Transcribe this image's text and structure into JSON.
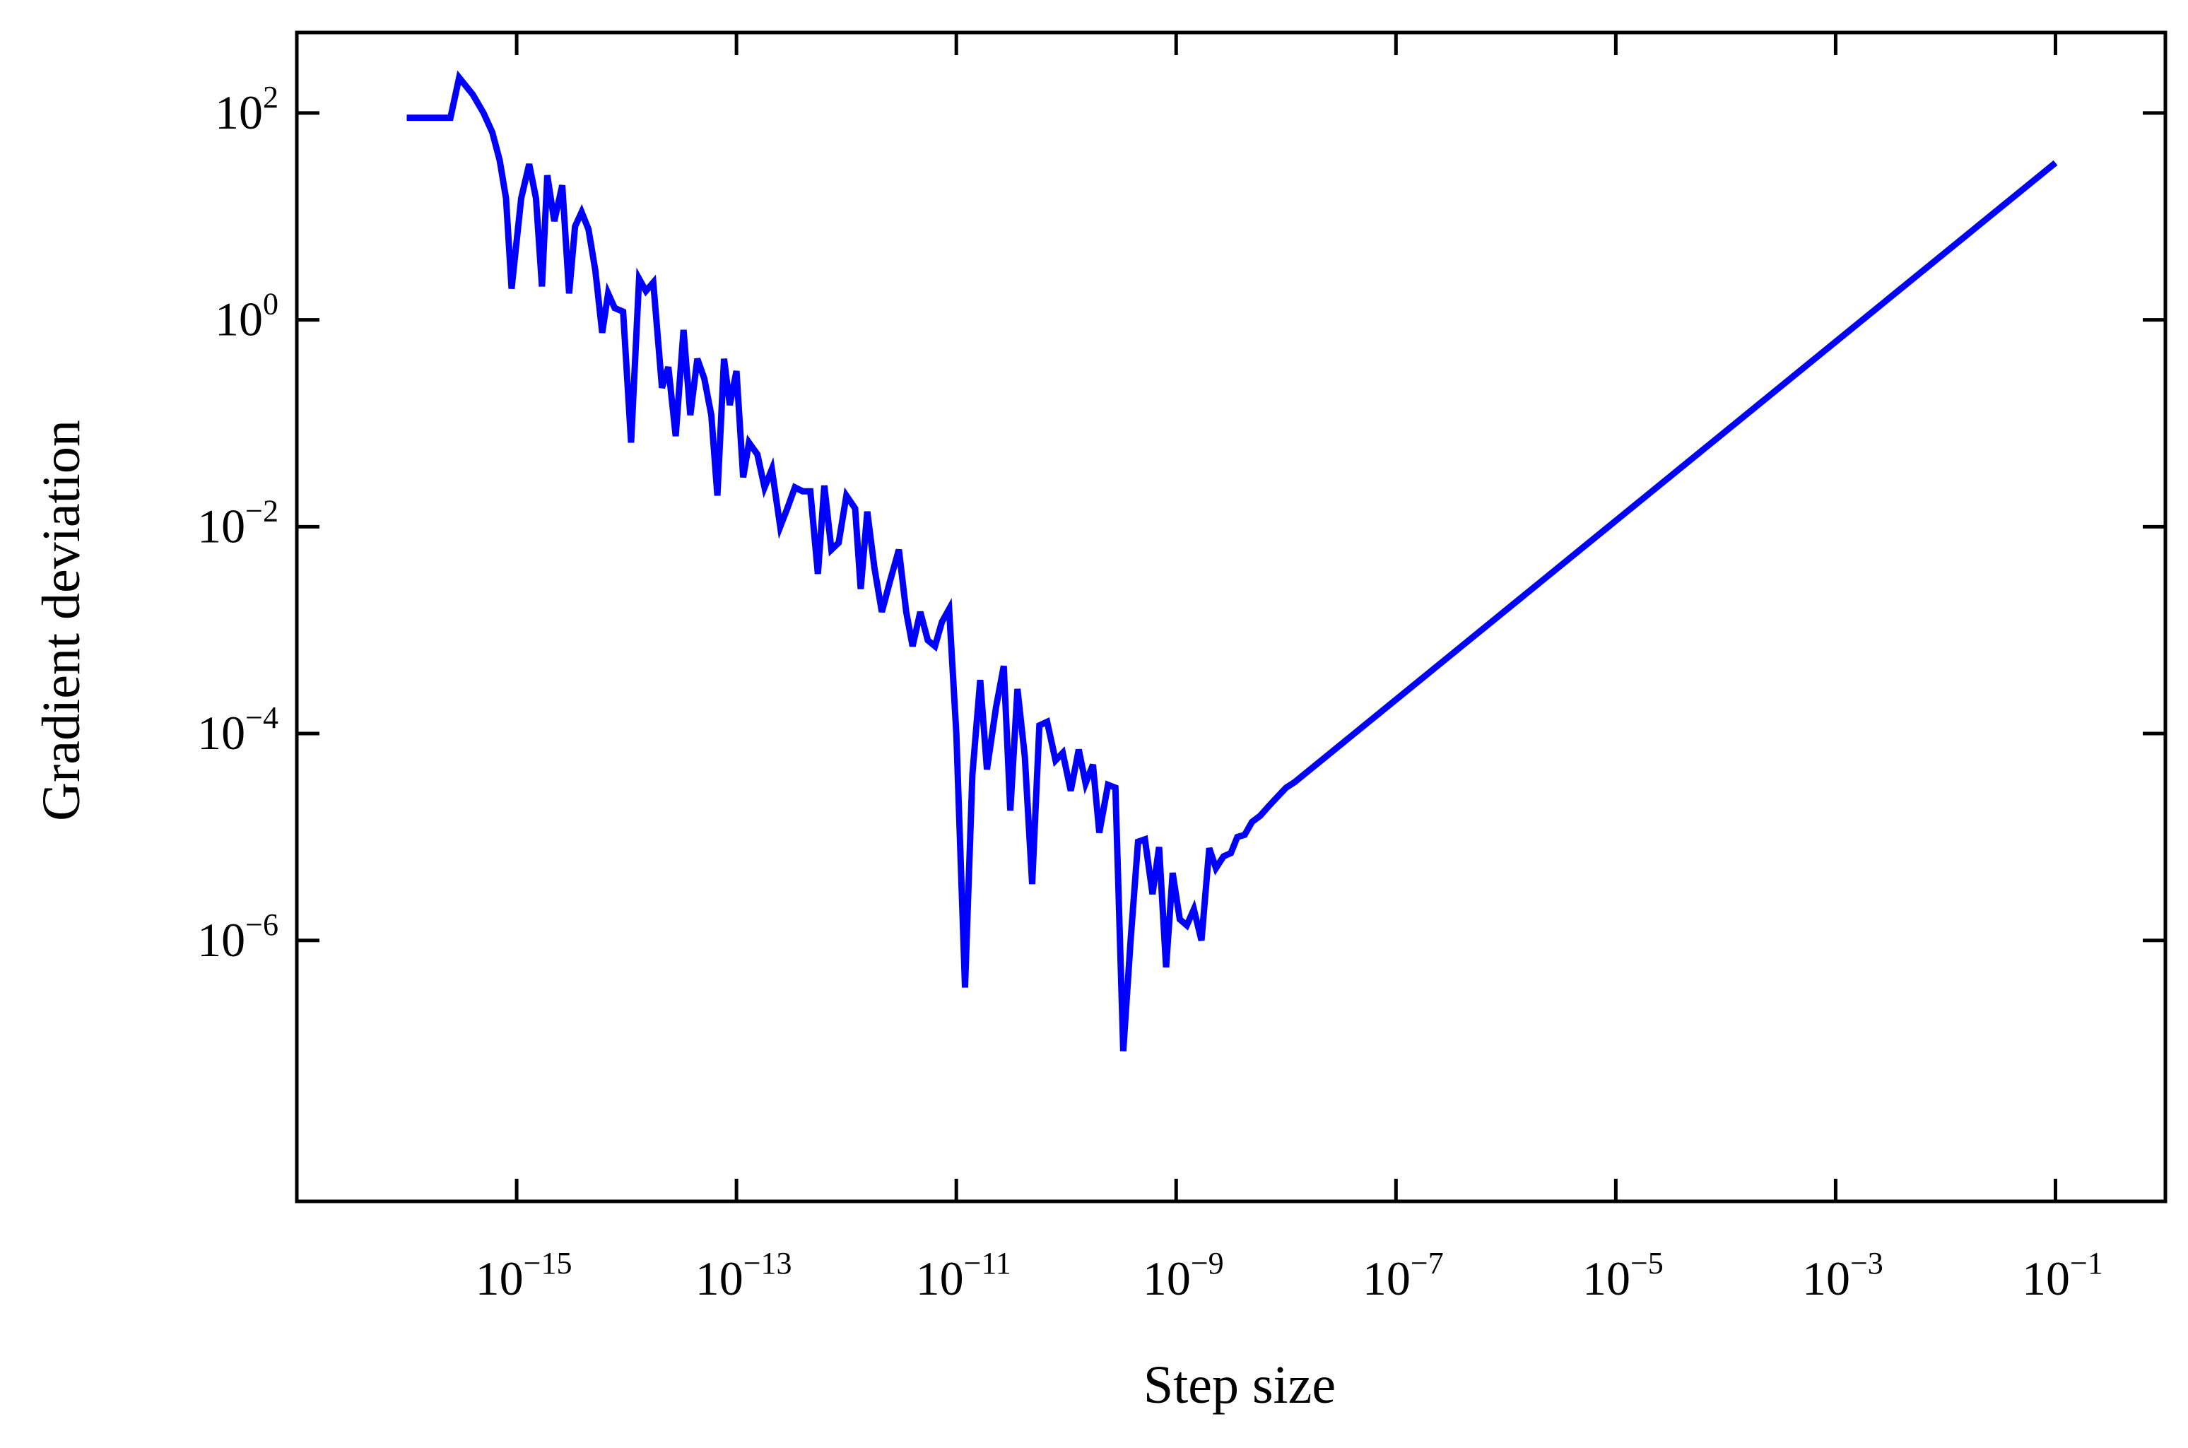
{
  "chart_data": {
    "type": "line",
    "title": "",
    "xlabel": "Step size",
    "ylabel": "Gradient deviation",
    "x_scale": "log",
    "y_scale": "log",
    "xlim": [
      1e-17,
      1
    ],
    "ylim": [
      3e-09,
      600
    ],
    "grid": false,
    "legend": "none",
    "x_ticks": [
      {
        "value": 1e-15,
        "base": "10",
        "exp": "−15"
      },
      {
        "value": 1e-13,
        "base": "10",
        "exp": "−13"
      },
      {
        "value": 1e-11,
        "base": "10",
        "exp": "−11"
      },
      {
        "value": 1e-09,
        "base": "10",
        "exp": "−9"
      },
      {
        "value": 1e-07,
        "base": "10",
        "exp": "−7"
      },
      {
        "value": 1e-05,
        "base": "10",
        "exp": "−5"
      },
      {
        "value": 0.001,
        "base": "10",
        "exp": "−3"
      },
      {
        "value": 0.1,
        "base": "10",
        "exp": "−1"
      }
    ],
    "y_ticks": [
      {
        "value": 100,
        "base": "10",
        "exp": "2"
      },
      {
        "value": 1,
        "base": "10",
        "exp": "0"
      },
      {
        "value": 0.01,
        "base": "10",
        "exp": "−2"
      },
      {
        "value": 0.0001,
        "base": "10",
        "exp": "−4"
      },
      {
        "value": 1e-06,
        "base": "10",
        "exp": "−6"
      }
    ],
    "series": [
      {
        "color": "#0000ff",
        "points": [
          [
            1e-16,
            90
          ],
          [
            2.5e-16,
            90
          ],
          [
            3e-16,
            220
          ],
          [
            4e-16,
            150
          ],
          [
            5e-16,
            100
          ],
          [
            6e-16,
            65
          ],
          [
            7e-16,
            35
          ],
          [
            8e-16,
            15
          ],
          [
            9e-16,
            2
          ],
          [
            1.1e-15,
            15
          ],
          [
            1.3e-15,
            32
          ],
          [
            1.5e-15,
            15
          ],
          [
            1.7e-15,
            2.1
          ],
          [
            1.9e-15,
            25
          ],
          [
            2.2e-15,
            9
          ],
          [
            2.6e-15,
            20
          ],
          [
            3e-15,
            1.8
          ],
          [
            3.4e-15,
            8
          ],
          [
            3.9e-15,
            11
          ],
          [
            4.5e-15,
            7.5
          ],
          [
            5.2e-15,
            3
          ],
          [
            6e-15,
            0.75
          ],
          [
            6.8e-15,
            1.8
          ],
          [
            7.8e-15,
            1.3
          ],
          [
            9.3e-15,
            1.2
          ],
          [
            1.1e-14,
            0.065
          ],
          [
            1.3e-14,
            2.5
          ],
          [
            1.5e-14,
            1.9
          ],
          [
            1.75e-14,
            2.3
          ],
          [
            2.1e-14,
            0.22
          ],
          [
            2.4e-14,
            0.35
          ],
          [
            2.8e-14,
            0.075
          ],
          [
            3.3e-14,
            0.8
          ],
          [
            3.8e-14,
            0.12
          ],
          [
            4.4e-14,
            0.42
          ],
          [
            5.1e-14,
            0.27
          ],
          [
            5.9e-14,
            0.12
          ],
          [
            6.7e-14,
            0.02
          ],
          [
            7.7e-14,
            0.42
          ],
          [
            8.7e-14,
            0.15
          ],
          [
            1e-13,
            0.32
          ],
          [
            1.15e-13,
            0.03
          ],
          [
            1.3e-13,
            0.065
          ],
          [
            1.55e-13,
            0.05
          ],
          [
            1.8e-13,
            0.024
          ],
          [
            2.1e-13,
            0.036
          ],
          [
            2.5e-13,
            0.01
          ],
          [
            2.9e-13,
            0.015
          ],
          [
            3.4e-13,
            0.024
          ],
          [
            4e-13,
            0.022
          ],
          [
            4.7e-13,
            0.022
          ],
          [
            5.5e-13,
            0.0035
          ],
          [
            6.3e-13,
            0.025
          ],
          [
            7.3e-13,
            0.006
          ],
          [
            8.5e-13,
            0.007
          ],
          [
            1e-12,
            0.02
          ],
          [
            1.2e-12,
            0.015
          ],
          [
            1.35e-12,
            0.0025
          ],
          [
            1.55e-12,
            0.014
          ],
          [
            1.8e-12,
            0.004
          ],
          [
            2.1e-12,
            0.0015
          ],
          [
            2.5e-12,
            0.003
          ],
          [
            3e-12,
            0.006
          ],
          [
            3.5e-12,
            0.0015
          ],
          [
            4e-12,
            0.0007
          ],
          [
            4.7e-12,
            0.0015
          ],
          [
            5.5e-12,
            0.0008
          ],
          [
            6.4e-12,
            0.0007
          ],
          [
            7.4e-12,
            0.0012
          ],
          [
            8.6e-12,
            0.0016
          ],
          [
            1e-11,
            0.0001
          ],
          [
            1.2e-11,
            3.5e-07
          ],
          [
            1.4e-11,
            4e-05
          ],
          [
            1.65e-11,
            0.00033
          ],
          [
            1.9e-11,
            4.5e-05
          ],
          [
            2.3e-11,
            0.00018
          ],
          [
            2.7e-11,
            0.00045
          ],
          [
            3.1e-11,
            1.8e-05
          ],
          [
            3.6e-11,
            0.00027
          ],
          [
            4.2e-11,
            6e-05
          ],
          [
            4.9e-11,
            3.5e-06
          ],
          [
            5.7e-11,
            0.00012
          ],
          [
            6.7e-11,
            0.00013
          ],
          [
            8e-11,
            5.5e-05
          ],
          [
            9.3e-11,
            6.5e-05
          ],
          [
            1.1e-10,
            2.8e-05
          ],
          [
            1.3e-10,
            7e-05
          ],
          [
            1.5e-10,
            3.3e-05
          ],
          [
            1.75e-10,
            5e-05
          ],
          [
            2e-10,
            1.1e-05
          ],
          [
            2.4e-10,
            3.2e-05
          ],
          [
            2.8e-10,
            3e-05
          ],
          [
            3.3e-10,
            8.5e-08
          ],
          [
            3.85e-10,
            1e-06
          ],
          [
            4.5e-10,
            9e-06
          ],
          [
            5.2e-10,
            9.5e-06
          ],
          [
            6.1e-10,
            2.8e-06
          ],
          [
            7e-10,
            8e-06
          ],
          [
            8.1e-10,
            5.5e-07
          ],
          [
            9.3e-10,
            4.5e-06
          ],
          [
            1.08e-09,
            1.6e-06
          ],
          [
            1.25e-09,
            1.4e-06
          ],
          [
            1.45e-09,
            2e-06
          ],
          [
            1.7e-09,
            1e-06
          ],
          [
            2e-09,
            7.8e-06
          ],
          [
            2.3e-09,
            5e-06
          ],
          [
            2.7e-09,
            6.5e-06
          ],
          [
            3.15e-09,
            7e-06
          ],
          [
            3.6e-09,
            1e-05
          ],
          [
            4.2e-09,
            1.05e-05
          ],
          [
            4.9e-09,
            1.4e-05
          ],
          [
            5.8e-09,
            1.6e-05
          ],
          [
            7e-09,
            2e-05
          ],
          [
            8.5e-09,
            2.5e-05
          ],
          [
            1e-08,
            3e-05
          ],
          [
            1.2e-08,
            3.4e-05
          ],
          [
            0.1,
            33
          ]
        ]
      }
    ]
  }
}
